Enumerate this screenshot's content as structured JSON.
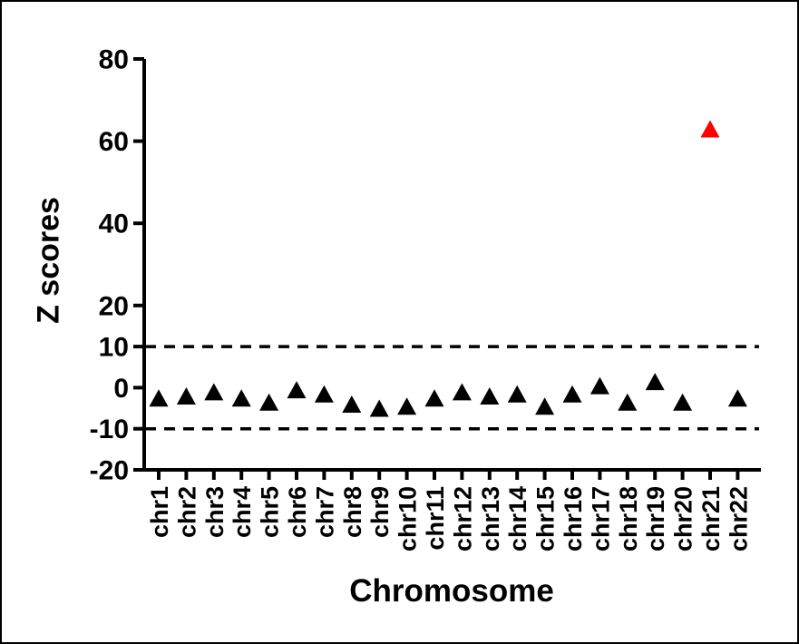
{
  "figure": {
    "background_color": "#ffffff",
    "border_color": "#000000"
  },
  "chart_data": {
    "type": "scatter",
    "marker": "triangle-up",
    "title": "",
    "xlabel": "Chromosome",
    "ylabel": "Z scores",
    "categories": [
      "chr1",
      "chr2",
      "chr3",
      "chr4",
      "chr5",
      "chr6",
      "chr7",
      "chr8",
      "chr9",
      "chr10",
      "chr11",
      "chr12",
      "chr13",
      "chr14",
      "chr15",
      "chr16",
      "chr17",
      "chr18",
      "chr19",
      "chr20",
      "chr21",
      "chr22"
    ],
    "values": [
      -2.5,
      -2,
      -1,
      -2.5,
      -3.5,
      -0.5,
      -1.5,
      -4,
      -5,
      -4.5,
      -2.5,
      -1,
      -2,
      -1.5,
      -4.5,
      -1.5,
      0.5,
      -3.5,
      1.5,
      -3.5,
      63,
      -2.5
    ],
    "point_colors": [
      "#000000",
      "#000000",
      "#000000",
      "#000000",
      "#000000",
      "#000000",
      "#000000",
      "#000000",
      "#000000",
      "#000000",
      "#000000",
      "#000000",
      "#000000",
      "#000000",
      "#000000",
      "#000000",
      "#000000",
      "#000000",
      "#000000",
      "#000000",
      "#ff0000",
      "#000000"
    ],
    "default_color": "#000000",
    "axis_color": "#000000",
    "ylim": [
      -20,
      80
    ],
    "yticks": [
      80,
      60,
      40,
      20,
      10,
      0,
      -10,
      -20
    ],
    "reference_lines": [
      {
        "y": 10,
        "style": "dashed",
        "color": "#000000"
      },
      {
        "y": -10,
        "style": "dashed",
        "color": "#000000"
      }
    ],
    "grid": false,
    "legend": null
  }
}
